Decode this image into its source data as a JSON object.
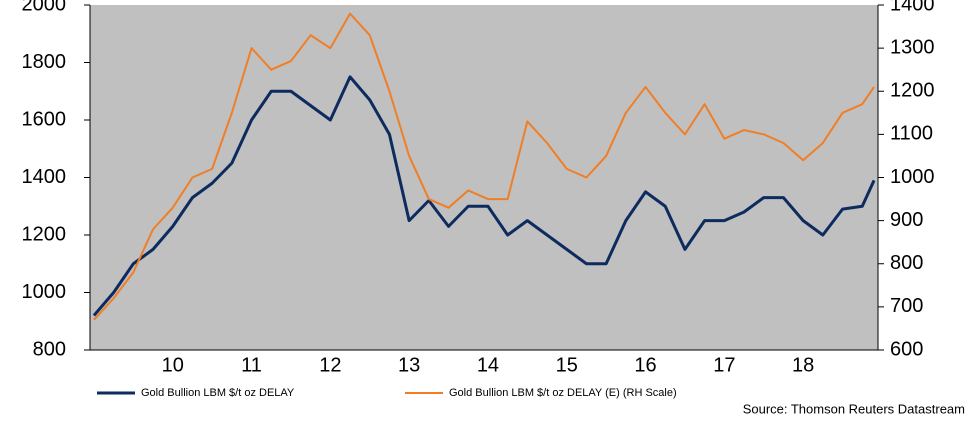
{
  "chart_data": {
    "type": "line",
    "x": [
      2009.5,
      2009.75,
      2010.0,
      2010.25,
      2010.5,
      2010.75,
      2011.0,
      2011.25,
      2011.5,
      2011.75,
      2012.0,
      2012.25,
      2012.5,
      2012.75,
      2013.0,
      2013.25,
      2013.5,
      2013.75,
      2014.0,
      2014.25,
      2014.5,
      2014.75,
      2015.0,
      2015.25,
      2015.5,
      2015.75,
      2016.0,
      2016.25,
      2016.5,
      2016.75,
      2017.0,
      2017.25,
      2017.5,
      2017.75,
      2018.0,
      2018.25,
      2018.5,
      2018.75,
      2019.0,
      2019.25,
      2019.4
    ],
    "series": [
      {
        "name": "Gold Bullion LBM $/t oz DELAY",
        "color": "#0d2b5e",
        "axis": "y",
        "values": [
          920,
          1000,
          1100,
          1150,
          1230,
          1330,
          1380,
          1450,
          1600,
          1700,
          1700,
          1650,
          1600,
          1750,
          1670,
          1550,
          1250,
          1320,
          1230,
          1300,
          1300,
          1200,
          1250,
          1200,
          1150,
          1100,
          1100,
          1250,
          1350,
          1300,
          1150,
          1250,
          1250,
          1280,
          1330,
          1330,
          1250,
          1200,
          1290,
          1300,
          1390
        ]
      },
      {
        "name": "Gold Bullion LBM $/t oz DELAY (E) (RH Scale)",
        "color": "#f07e26",
        "axis": "y2",
        "values": [
          670,
          720,
          780,
          880,
          930,
          1000,
          1020,
          1150,
          1300,
          1250,
          1270,
          1330,
          1300,
          1380,
          1330,
          1200,
          1050,
          950,
          930,
          970,
          950,
          950,
          1130,
          1080,
          1020,
          1000,
          1050,
          1150,
          1210,
          1150,
          1100,
          1170,
          1090,
          1110,
          1100,
          1080,
          1040,
          1080,
          1150,
          1170,
          1210
        ]
      }
    ],
    "xlim": [
      2009.45,
      2019.45
    ],
    "xticks": [
      {
        "value": 2010.5,
        "label": "10"
      },
      {
        "value": 2011.5,
        "label": "11"
      },
      {
        "value": 2012.5,
        "label": "12"
      },
      {
        "value": 2013.5,
        "label": "13"
      },
      {
        "value": 2014.5,
        "label": "14"
      },
      {
        "value": 2015.5,
        "label": "15"
      },
      {
        "value": 2016.5,
        "label": "16"
      },
      {
        "value": 2017.5,
        "label": "17"
      },
      {
        "value": 2018.5,
        "label": "18"
      }
    ],
    "ylim": [
      800,
      2000
    ],
    "yticks": [
      800,
      1000,
      1200,
      1400,
      1600,
      1800,
      2000
    ],
    "y2lim": [
      600,
      1400
    ],
    "y2ticks": [
      600,
      700,
      800,
      900,
      1000,
      1100,
      1200,
      1300,
      1400
    ],
    "source": "Source: Thomson Reuters Datastream"
  }
}
